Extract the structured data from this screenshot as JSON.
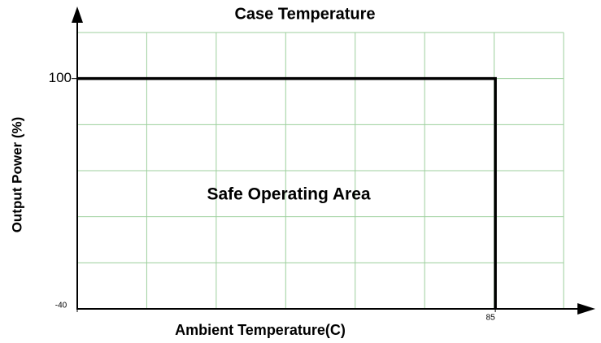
{
  "chart_data": {
    "type": "line",
    "title": "Case Temperature",
    "x_label": "Ambient Temperature(C)",
    "y_label": "Output Power (%)",
    "annotation": "Safe Operating Area",
    "x": [
      -40,
      85,
      85
    ],
    "series": [
      {
        "name": "Output Power",
        "color": "#000000",
        "values": [
          100,
          100,
          0
        ]
      }
    ],
    "xlim": [
      -40,
      105.4
    ],
    "xticks": [
      -40,
      85
    ],
    "ylim": [
      0,
      120
    ],
    "yticks": [
      100
    ],
    "grid": true,
    "grid_color": "#9ccf9c"
  }
}
